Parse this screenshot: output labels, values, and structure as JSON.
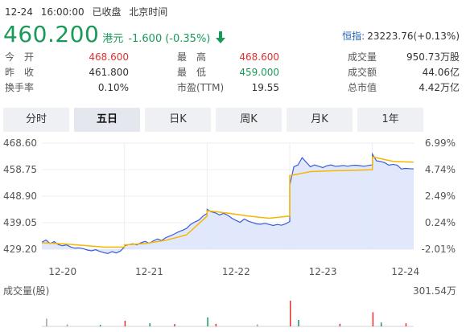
{
  "header": {
    "date": "12-24",
    "time": "16:00:00",
    "status": "已收盘",
    "timezone": "北京时间"
  },
  "quote": {
    "price": "460.200",
    "currency": "港元",
    "change": "-1.600",
    "change_pct": "(-0.35%)",
    "direction_icon": "down-arrow-icon",
    "index_label": "恒指:",
    "index_value": "23223.76(+0.13%)"
  },
  "stats": {
    "open_label": "今　开",
    "open_value": "468.600",
    "prev_close_label": "昨　收",
    "prev_close_value": "461.800",
    "turnover_rate_label": "换手率",
    "turnover_rate_value": "0.10%",
    "high_label": "最　高",
    "high_value": "468.600",
    "low_label": "最　低",
    "low_value": "459.000",
    "pe_label": "市盈(TTM)",
    "pe_value": "19.55",
    "volume_label": "成交量",
    "volume_value": "950.73万股",
    "amount_label": "成交额",
    "amount_value": "44.06亿",
    "mktcap_label": "总市值",
    "mktcap_value": "4.42万亿"
  },
  "tabs": [
    {
      "label": "分时",
      "active": false
    },
    {
      "label": "五日",
      "active": true
    },
    {
      "label": "日K",
      "active": false
    },
    {
      "label": "周K",
      "active": false
    },
    {
      "label": "月K",
      "active": false
    },
    {
      "label": "1年",
      "active": false
    }
  ],
  "colors": {
    "price_line": "#3b5bdb",
    "avg_line": "#f5b700",
    "area_fill": "#dce4fb",
    "up": "#e03030",
    "down": "#1a9a5a",
    "volume_neutral": "#9aa3b0"
  },
  "chart_data": {
    "type": "line",
    "title": "",
    "y_ticks_left": [
      "468.60",
      "458.75",
      "448.90",
      "439.05",
      "429.20"
    ],
    "y_ticks_right": [
      "6.99%",
      "4.74%",
      "2.49%",
      "0.24%",
      "-2.01%"
    ],
    "ylim": [
      429.2,
      468.6
    ],
    "x_ticks": [
      "12-20",
      "12-21",
      "12-22",
      "12-23",
      "12-24"
    ],
    "grid": true,
    "series": [
      {
        "x": [
          0,
          0.05,
          0.1,
          0.15,
          0.2,
          0.25,
          0.3,
          0.35,
          0.4,
          0.45,
          0.5,
          0.55,
          0.6,
          0.65,
          0.7,
          0.75,
          0.8,
          0.85,
          0.9,
          0.95,
          1.0,
          1.0,
          1.05,
          1.1,
          1.15,
          1.2,
          1.25,
          1.3,
          1.35,
          1.4,
          1.45,
          1.5,
          1.55,
          1.6,
          1.65,
          1.7,
          1.75,
          1.8,
          1.85,
          1.9,
          1.95,
          2.0,
          2.0,
          2.05,
          2.1,
          2.15,
          2.2,
          2.25,
          2.3,
          2.35,
          2.4,
          2.45,
          2.5,
          2.55,
          2.6,
          2.65,
          2.7,
          2.75,
          2.8,
          2.85,
          2.9,
          2.95,
          3.0,
          3.0,
          3.05,
          3.1,
          3.15,
          3.2,
          3.25,
          3.3,
          3.35,
          3.4,
          3.45,
          3.5,
          3.55,
          3.6,
          3.65,
          3.7,
          3.75,
          3.8,
          3.85,
          3.9,
          3.95,
          4.0,
          4.0,
          4.05,
          4.1,
          4.15,
          4.2,
          4.25,
          4.3,
          4.35,
          4.4,
          4.45,
          4.5
        ],
        "values": [
          431.8,
          432.6,
          431.3,
          432.0,
          430.9,
          430.5,
          430.8,
          430.0,
          429.6,
          429.7,
          429.4,
          428.9,
          428.6,
          429.0,
          428.4,
          427.9,
          427.6,
          428.3,
          427.8,
          428.5,
          430.0,
          430.5,
          430.9,
          431.2,
          430.8,
          431.6,
          432.1,
          431.4,
          432.3,
          433.0,
          432.4,
          433.5,
          434.1,
          434.8,
          435.6,
          436.2,
          436.9,
          438.4,
          439.3,
          440.0,
          441.5,
          442.5,
          444.0,
          443.1,
          442.7,
          441.9,
          442.5,
          441.8,
          440.7,
          439.9,
          439.2,
          440.4,
          439.6,
          439.1,
          438.6,
          438.5,
          438.8,
          438.4,
          438.0,
          438.4,
          438.1,
          438.6,
          439.5,
          453.0,
          459.8,
          460.5,
          463.2,
          461.5,
          459.8,
          460.5,
          460.0,
          459.5,
          460.2,
          460.5,
          460.0,
          460.1,
          460.3,
          460.0,
          460.3,
          460.4,
          460.2,
          460.0,
          460.3,
          460.5,
          464.5,
          462.0,
          461.8,
          461.3,
          460.4,
          460.7,
          460.4,
          459.0,
          459.2,
          459.1,
          459.0
        ],
        "name": ""
      },
      {
        "x": [
          0,
          0.25,
          0.5,
          0.75,
          1.0,
          1.0,
          1.25,
          1.5,
          1.75,
          2.0,
          2.0,
          2.25,
          2.5,
          2.75,
          3.0,
          3.0,
          3.25,
          3.5,
          3.75,
          4.0,
          4.0,
          4.25,
          4.5
        ],
        "values": [
          431.6,
          431.2,
          430.6,
          430.0,
          430.0,
          430.8,
          431.3,
          432.5,
          434.5,
          441.5,
          443.5,
          442.6,
          441.5,
          440.7,
          441.5,
          456.5,
          458.0,
          458.3,
          458.5,
          458.7,
          463.5,
          461.8,
          461.5
        ],
        "name": ""
      }
    ],
    "volume": {
      "label": "成交量(股)",
      "max_label": "301.54万",
      "bars": [
        {
          "x": 0.05,
          "v": 30,
          "c": "neutral"
        },
        {
          "x": 0.3,
          "v": 8,
          "c": "neutral"
        },
        {
          "x": 0.7,
          "v": 6,
          "c": "down"
        },
        {
          "x": 1.0,
          "v": 22,
          "c": "up"
        },
        {
          "x": 1.3,
          "v": 12,
          "c": "down"
        },
        {
          "x": 1.6,
          "v": 9,
          "c": "up"
        },
        {
          "x": 2.0,
          "v": 35,
          "c": "down"
        },
        {
          "x": 2.1,
          "v": 10,
          "c": "up"
        },
        {
          "x": 2.6,
          "v": 8,
          "c": "neutral"
        },
        {
          "x": 3.0,
          "v": 100,
          "c": "up"
        },
        {
          "x": 3.1,
          "v": 25,
          "c": "down"
        },
        {
          "x": 3.6,
          "v": 10,
          "c": "up"
        },
        {
          "x": 4.0,
          "v": 55,
          "c": "up"
        },
        {
          "x": 4.1,
          "v": 15,
          "c": "down"
        },
        {
          "x": 4.4,
          "v": 12,
          "c": "up"
        }
      ]
    }
  }
}
